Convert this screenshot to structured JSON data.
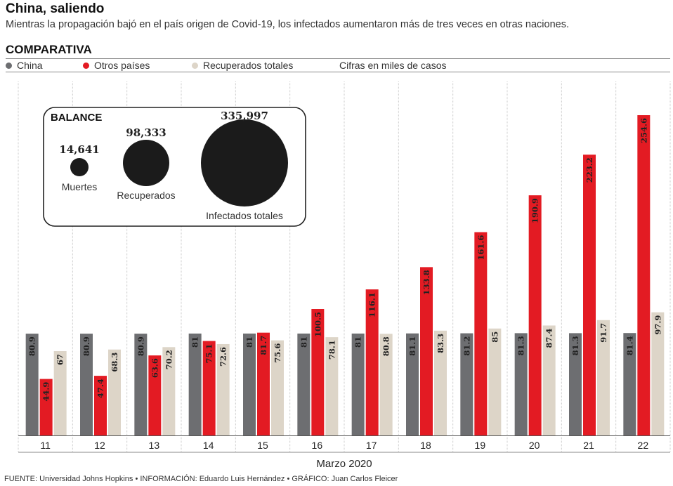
{
  "header": {
    "title": "China, saliendo",
    "subtitle": "Mientras la propagación bajó en el país origen de Covid-19, los infectados aumentaron más de tres veces en otras naciones.",
    "section": "COMPARATIVA"
  },
  "legend": {
    "note": "Cifras en miles de casos"
  },
  "balance": {
    "title": "BALANCE",
    "items": [
      {
        "label": "Muertes",
        "value": "14,641"
      },
      {
        "label": "Recuperados",
        "value": "98,333"
      },
      {
        "label": "Infectados totales",
        "value": "335,997"
      }
    ]
  },
  "chart_data": {
    "type": "bar",
    "categories": [
      "11",
      "12",
      "13",
      "14",
      "15",
      "16",
      "17",
      "18",
      "19",
      "20",
      "21",
      "22"
    ],
    "xlabel": "Marzo 2020",
    "ylabel": "",
    "ylim": [
      0,
      270
    ],
    "grid": "vertical separators",
    "series": [
      {
        "name": "China",
        "color": "#6d6e71",
        "values": [
          80.9,
          80.9,
          80.9,
          81,
          81,
          81,
          81,
          81.1,
          81.2,
          81.3,
          81.3,
          81.4
        ]
      },
      {
        "name": "Otros países",
        "color": "#e31b23",
        "values": [
          44.9,
          47.4,
          63.6,
          75.1,
          81.7,
          100.5,
          116.1,
          133.8,
          161.6,
          190.9,
          223.2,
          254.6
        ]
      },
      {
        "name": "Recuperados totales",
        "color": "#ddd5c8",
        "values": [
          67,
          68.3,
          70.2,
          72.6,
          75.6,
          78.1,
          80.8,
          83.3,
          85,
          87.4,
          91.7,
          97.9
        ]
      }
    ]
  },
  "footer": "FUENTE: Universidad Johns Hopkins • INFORMACIÓN: Eduardo Luis Hernández • GRÁFICO: Juan Carlos Fleicer"
}
